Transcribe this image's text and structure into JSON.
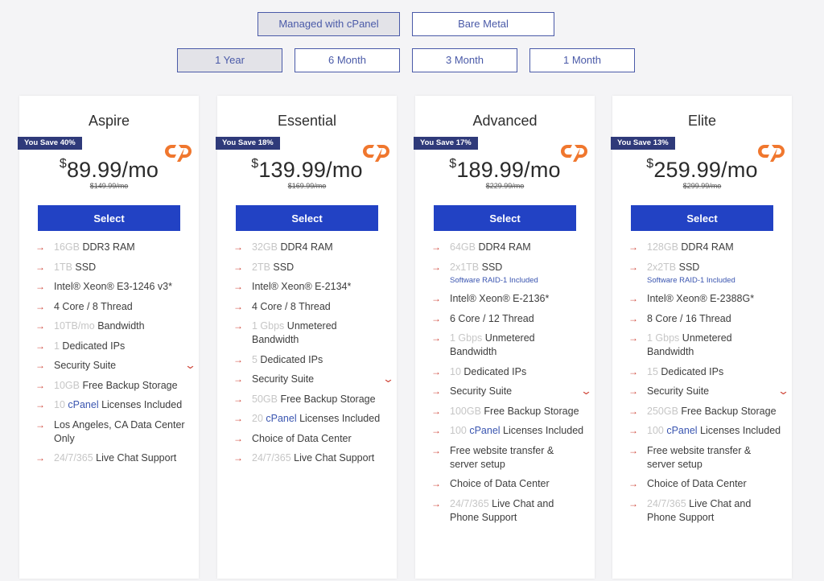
{
  "hosting_tabs": [
    "Managed with cPanel",
    "Bare Metal"
  ],
  "term_tabs": [
    "1 Year",
    "6 Month",
    "3 Month",
    "1 Month"
  ],
  "colors": {
    "accent": "#2242c4",
    "badge": "#2f3a7a",
    "arrow": "#d04a3e",
    "cpanel": "#f0772e"
  },
  "plans": [
    {
      "name": "Aspire",
      "save": "You Save 40%",
      "currency": "$",
      "price": "89.99/mo",
      "old_price": "$149.99/mo",
      "button": "Select",
      "features": [
        {
          "pre": "16GB",
          "main": " DDR3 RAM"
        },
        {
          "pre": "1TB",
          "main": " SSD"
        },
        {
          "main": "Intel® Xeon® E3-1246 v3*"
        },
        {
          "main": "4 Core / 8 Thread"
        },
        {
          "pre": "10TB/mo",
          "main": " Bandwidth"
        },
        {
          "pre": "1",
          "main": " Dedicated IPs"
        },
        {
          "main": "Security Suite",
          "expand": true
        },
        {
          "pre": "10GB",
          "main": " Free Backup Storage"
        },
        {
          "pre": "10",
          "blue": " cPanel",
          "main": " Licenses Included"
        },
        {
          "main": "Los Angeles, CA Data Center Only"
        },
        {
          "pre": "24/7/365",
          "main": " Live Chat Support"
        }
      ]
    },
    {
      "name": "Essential",
      "save": "You Save 18%",
      "currency": "$",
      "price": "139.99/mo",
      "old_price": "$169.99/mo",
      "button": "Select",
      "features": [
        {
          "pre": "32GB",
          "main": " DDR4 RAM"
        },
        {
          "pre": "2TB",
          "main": " SSD"
        },
        {
          "main": "Intel® Xeon® E-2134*"
        },
        {
          "main": "4 Core / 8 Thread"
        },
        {
          "pre": "1 Gbps",
          "main": " Unmetered Bandwidth"
        },
        {
          "pre": "5",
          "main": " Dedicated IPs"
        },
        {
          "main": "Security Suite",
          "expand": true
        },
        {
          "pre": "50GB",
          "main": " Free Backup Storage"
        },
        {
          "pre": "20",
          "blue": " cPanel",
          "main": " Licenses Included"
        },
        {
          "main": "Choice of Data Center"
        },
        {
          "pre": "24/7/365",
          "main": " Live Chat Support"
        }
      ]
    },
    {
      "name": "Advanced",
      "save": "You Save 17%",
      "currency": "$",
      "price": "189.99/mo",
      "old_price": "$229.99/mo",
      "button": "Select",
      "features": [
        {
          "pre": "64GB",
          "main": " DDR4 RAM"
        },
        {
          "pre": "2x1TB",
          "main": " SSD",
          "sub": "Software RAID-1 Included"
        },
        {
          "main": "Intel® Xeon® E-2136*"
        },
        {
          "main": "6 Core / 12 Thread"
        },
        {
          "pre": "1 Gbps",
          "main": " Unmetered Bandwidth"
        },
        {
          "pre": "10",
          "main": " Dedicated IPs"
        },
        {
          "main": "Security Suite",
          "expand": true
        },
        {
          "pre": "100GB",
          "main": " Free Backup Storage"
        },
        {
          "pre": "100",
          "blue": " cPanel",
          "main": " Licenses Included"
        },
        {
          "main": "Free website transfer & server setup"
        },
        {
          "main": "Choice of Data Center"
        },
        {
          "pre": "24/7/365",
          "main": " Live Chat and Phone Support"
        }
      ]
    },
    {
      "name": "Elite",
      "save": "You Save 13%",
      "currency": "$",
      "price": "259.99/mo",
      "old_price": "$299.99/mo",
      "button": "Select",
      "features": [
        {
          "pre": "128GB",
          "main": " DDR4 RAM"
        },
        {
          "pre": "2x2TB",
          "main": " SSD",
          "sub": "Software RAID-1 Included"
        },
        {
          "main": "Intel® Xeon® E-2388G*"
        },
        {
          "main": "8 Core / 16 Thread"
        },
        {
          "pre": "1 Gbps",
          "main": " Unmetered Bandwidth"
        },
        {
          "pre": "15",
          "main": " Dedicated IPs"
        },
        {
          "main": "Security Suite",
          "expand": true
        },
        {
          "pre": "250GB",
          "main": " Free Backup Storage"
        },
        {
          "pre": "100",
          "blue": " cPanel",
          "main": " Licenses Included"
        },
        {
          "main": "Free website transfer & server setup"
        },
        {
          "main": "Choice of Data Center"
        },
        {
          "pre": "24/7/365",
          "main": " Live Chat and Phone Support"
        }
      ]
    }
  ]
}
